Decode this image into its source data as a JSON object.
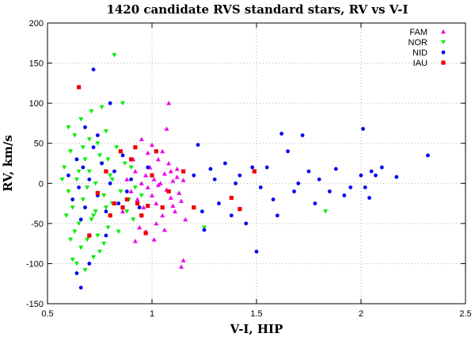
{
  "chart_data": {
    "type": "scatter",
    "title": "1420 candidate RVS standard stars, RV vs V-I",
    "xlabel": "V-I, HIP",
    "ylabel": "RV, km/s",
    "xlim": [
      0.5,
      2.5
    ],
    "ylim": [
      -150,
      200
    ],
    "x_ticks": [
      0.5,
      1,
      1.5,
      2,
      2.5
    ],
    "x_tick_labels": [
      "0.5",
      "1",
      "1.5",
      "2",
      "2.5"
    ],
    "y_ticks": [
      -150,
      -100,
      -50,
      0,
      50,
      100,
      150,
      200
    ],
    "y_tick_labels": [
      "-150",
      "-100",
      "-50",
      "0",
      "50",
      "100",
      "150",
      "200"
    ],
    "grid": true,
    "legend_position": "top-right",
    "series": [
      {
        "name": "FAM",
        "marker": "triangle-up",
        "color": "#ee00ee",
        "points": [
          [
            0.88,
            5
          ],
          [
            0.9,
            -10
          ],
          [
            0.92,
            15
          ],
          [
            0.93,
            -20
          ],
          [
            0.95,
            0
          ],
          [
            0.96,
            -30
          ],
          [
            0.97,
            10
          ],
          [
            0.98,
            -5
          ],
          [
            0.99,
            20
          ],
          [
            1.0,
            -15
          ],
          [
            1.01,
            5
          ],
          [
            1.02,
            -25
          ],
          [
            1.03,
            30
          ],
          [
            1.04,
            0
          ],
          [
            1.05,
            -40
          ],
          [
            1.06,
            12
          ],
          [
            1.07,
            -8
          ],
          [
            1.08,
            25
          ],
          [
            1.09,
            -18
          ],
          [
            1.1,
            3
          ],
          [
            1.11,
            -35
          ],
          [
            1.12,
            8
          ],
          [
            1.13,
            -12
          ],
          [
            1.14,
            -22
          ],
          [
            1.15,
            4
          ],
          [
            1.16,
            -45
          ],
          [
            0.94,
            -55
          ],
          [
            0.97,
            -60
          ],
          [
            1.02,
            -50
          ],
          [
            1.05,
            40
          ],
          [
            1.08,
            100
          ],
          [
            1.07,
            68
          ],
          [
            1.15,
            -96
          ],
          [
            1.14,
            -104
          ],
          [
            0.92,
            -72
          ],
          [
            0.95,
            55
          ],
          [
            1.01,
            -70
          ],
          [
            1.1,
            -28
          ],
          [
            0.91,
            30
          ],
          [
            1.03,
            -2
          ],
          [
            1.12,
            18
          ],
          [
            0.86,
            -35
          ],
          [
            0.98,
            38
          ],
          [
            1.06,
            -58
          ],
          [
            1.09,
            15
          ],
          [
            1.0,
            48
          ]
        ]
      },
      {
        "name": "NOR",
        "marker": "triangle-down",
        "color": "#00ee00",
        "points": [
          [
            0.58,
            20
          ],
          [
            0.6,
            -10
          ],
          [
            0.61,
            40
          ],
          [
            0.62,
            -30
          ],
          [
            0.63,
            60
          ],
          [
            0.64,
            5
          ],
          [
            0.65,
            -50
          ],
          [
            0.66,
            80
          ],
          [
            0.67,
            -20
          ],
          [
            0.68,
            30
          ],
          [
            0.69,
            -70
          ],
          [
            0.7,
            15
          ],
          [
            0.71,
            90
          ],
          [
            0.72,
            -40
          ],
          [
            0.73,
            0
          ],
          [
            0.74,
            50
          ],
          [
            0.75,
            -85
          ],
          [
            0.76,
            25
          ],
          [
            0.77,
            -15
          ],
          [
            0.78,
            65
          ],
          [
            0.79,
            -55
          ],
          [
            0.8,
            10
          ],
          [
            0.81,
            -25
          ],
          [
            0.82,
            160
          ],
          [
            0.83,
            45
          ],
          [
            0.84,
            -60
          ],
          [
            0.86,
            100
          ],
          [
            0.88,
            -35
          ],
          [
            0.9,
            20
          ],
          [
            0.92,
            -5
          ],
          [
            0.62,
            -95
          ],
          [
            0.64,
            -100
          ],
          [
            0.68,
            -108
          ],
          [
            0.72,
            -92
          ],
          [
            0.6,
            70
          ],
          [
            0.66,
            -80
          ],
          [
            0.7,
            55
          ],
          [
            0.74,
            -65
          ],
          [
            0.78,
            -30
          ],
          [
            0.76,
            95
          ],
          [
            0.59,
            -40
          ],
          [
            0.63,
            -60
          ],
          [
            0.67,
            45
          ],
          [
            0.71,
            -45
          ],
          [
            0.75,
            35
          ],
          [
            0.79,
            30
          ],
          [
            0.57,
            5
          ],
          [
            0.65,
            15
          ],
          [
            0.69,
            -5
          ],
          [
            0.73,
            -35
          ],
          [
            0.77,
            -75
          ],
          [
            0.81,
            5
          ],
          [
            0.85,
            -10
          ],
          [
            0.87,
            25
          ],
          [
            0.89,
            -20
          ],
          [
            0.91,
            -45
          ],
          [
            0.95,
            -15
          ],
          [
            1.83,
            -35
          ],
          [
            1.25,
            -55
          ],
          [
            0.61,
            -70
          ]
        ]
      },
      {
        "name": "NID",
        "marker": "circle",
        "color": "#0000ee",
        "points": [
          [
            0.6,
            10
          ],
          [
            0.62,
            -20
          ],
          [
            0.64,
            30
          ],
          [
            0.65,
            -5
          ],
          [
            0.66,
            -45
          ],
          [
            0.67,
            20
          ],
          [
            0.68,
            -30
          ],
          [
            0.7,
            5
          ],
          [
            0.72,
            45
          ],
          [
            0.74,
            -15
          ],
          [
            0.76,
            25
          ],
          [
            0.78,
            -35
          ],
          [
            0.8,
            0
          ],
          [
            0.82,
            15
          ],
          [
            0.84,
            -25
          ],
          [
            0.86,
            35
          ],
          [
            0.88,
            -10
          ],
          [
            0.9,
            5
          ],
          [
            0.94,
            -30
          ],
          [
            0.98,
            20
          ],
          [
            0.72,
            142
          ],
          [
            0.66,
            -130
          ],
          [
            0.64,
            -112
          ],
          [
            0.7,
            -100
          ],
          [
            0.68,
            70
          ],
          [
            0.74,
            60
          ],
          [
            0.78,
            -65
          ],
          [
            0.8,
            100
          ],
          [
            1.2,
            10
          ],
          [
            1.22,
            48
          ],
          [
            1.24,
            -35
          ],
          [
            1.25,
            -58
          ],
          [
            1.28,
            18
          ],
          [
            1.3,
            5
          ],
          [
            1.32,
            -25
          ],
          [
            1.35,
            25
          ],
          [
            1.38,
            -40
          ],
          [
            1.4,
            0
          ],
          [
            1.42,
            10
          ],
          [
            1.45,
            -50
          ],
          [
            1.48,
            20
          ],
          [
            1.5,
            -85
          ],
          [
            1.52,
            -5
          ],
          [
            1.55,
            20
          ],
          [
            1.58,
            -20
          ],
          [
            1.6,
            -40
          ],
          [
            1.62,
            62
          ],
          [
            1.65,
            40
          ],
          [
            1.68,
            -10
          ],
          [
            1.7,
            0
          ],
          [
            1.72,
            60
          ],
          [
            1.75,
            15
          ],
          [
            1.78,
            -25
          ],
          [
            1.8,
            5
          ],
          [
            1.85,
            -10
          ],
          [
            1.88,
            18
          ],
          [
            1.92,
            -15
          ],
          [
            1.95,
            -5
          ],
          [
            2.0,
            10
          ],
          [
            2.01,
            68
          ],
          [
            2.02,
            -5
          ],
          [
            2.04,
            -18
          ],
          [
            2.05,
            15
          ],
          [
            2.07,
            10
          ],
          [
            2.1,
            20
          ],
          [
            2.17,
            8
          ],
          [
            2.32,
            35
          ]
        ]
      },
      {
        "name": "IAU",
        "marker": "square",
        "color": "#ee0000",
        "points": [
          [
            0.65,
            120
          ],
          [
            0.7,
            -65
          ],
          [
            0.74,
            -12
          ],
          [
            0.78,
            15
          ],
          [
            0.8,
            -40
          ],
          [
            0.82,
            -25
          ],
          [
            0.85,
            40
          ],
          [
            0.88,
            -20
          ],
          [
            0.9,
            30
          ],
          [
            0.92,
            45
          ],
          [
            0.95,
            -40
          ],
          [
            0.97,
            -62
          ],
          [
            0.98,
            -28
          ],
          [
            1.0,
            10
          ],
          [
            1.02,
            40
          ],
          [
            1.05,
            -30
          ],
          [
            1.08,
            -10
          ],
          [
            1.15,
            15
          ],
          [
            1.2,
            -30
          ],
          [
            1.38,
            -18
          ],
          [
            1.42,
            -32
          ],
          [
            1.49,
            15
          ],
          [
            0.93,
            -25
          ],
          [
            0.86,
            -30
          ]
        ]
      }
    ]
  }
}
